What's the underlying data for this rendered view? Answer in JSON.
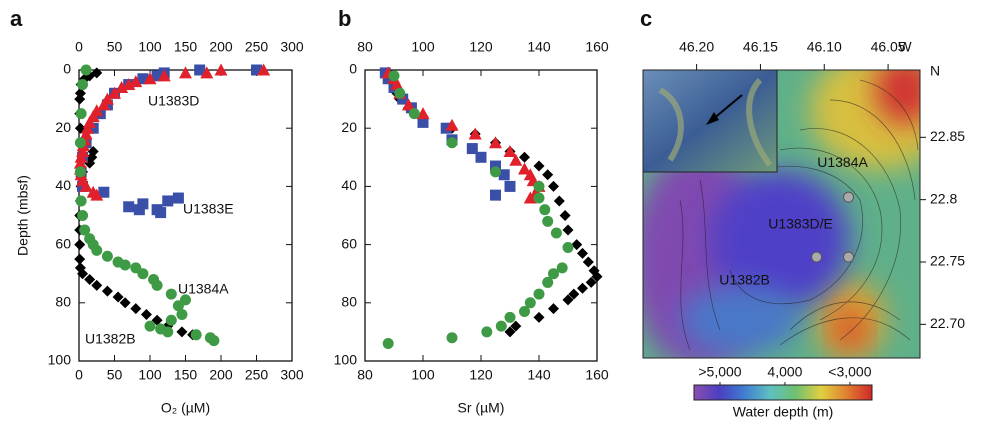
{
  "chart_data": [
    {
      "type": "scatter",
      "panel_label": "a",
      "xlabel": "O₂ (µM)",
      "ylabel": "Depth (mbsf)",
      "xlim": [
        0,
        300
      ],
      "xticks": [
        0,
        50,
        100,
        150,
        200,
        250,
        300
      ],
      "ylim": [
        0,
        100
      ],
      "yticks": [
        0,
        20,
        40,
        60,
        80,
        100
      ],
      "y_inverted": true,
      "series": [
        {
          "name": "U1382B",
          "color": "#000000",
          "marker": "diamond",
          "x": [
            25,
            15,
            8,
            3,
            2,
            1,
            1,
            2,
            3,
            20,
            18,
            15,
            5,
            3,
            2,
            1,
            1,
            1,
            1,
            2,
            5,
            15,
            25,
            40,
            55,
            65,
            80,
            95,
            110,
            125,
            145,
            160
          ],
          "values": [
            1,
            2,
            3,
            5,
            8,
            10,
            15,
            20,
            25,
            28,
            30,
            32,
            35,
            40,
            45,
            50,
            55,
            60,
            65,
            68,
            70,
            72,
            74,
            76,
            78,
            80,
            82,
            84,
            86,
            88,
            90,
            91
          ]
        },
        {
          "name": "U1383E",
          "color": "#3a4fa8",
          "marker": "square",
          "x": [
            250,
            170,
            120,
            110,
            90,
            70,
            50,
            40,
            30,
            20,
            10,
            5,
            3,
            5,
            35,
            140,
            125,
            90,
            70,
            85,
            110,
            115
          ],
          "values": [
            0,
            0,
            1,
            2,
            3,
            5,
            8,
            12,
            15,
            20,
            25,
            30,
            35,
            40,
            42,
            44,
            45,
            46,
            47,
            48,
            48,
            49
          ]
        },
        {
          "name": "U1383D",
          "color": "#e0202a",
          "marker": "triangle",
          "x": [
            260,
            200,
            180,
            150,
            120,
            100,
            80,
            70,
            60,
            50,
            40,
            35,
            25,
            20,
            15,
            12,
            10,
            8,
            6,
            5,
            3,
            2,
            2,
            3,
            5,
            10,
            20,
            25
          ],
          "values": [
            0,
            0,
            1,
            1,
            2,
            3,
            4,
            5,
            6,
            8,
            10,
            12,
            14,
            16,
            18,
            20,
            22,
            24,
            26,
            28,
            30,
            32,
            34,
            36,
            38,
            40,
            42,
            43
          ]
        },
        {
          "name": "U1384A",
          "color": "#3f9a46",
          "marker": "circle",
          "x": [
            10,
            5,
            3,
            2,
            2,
            3,
            5,
            8,
            15,
            20,
            25,
            40,
            55,
            65,
            80,
            90,
            105,
            110,
            130,
            150,
            140,
            145,
            130,
            100,
            115,
            125,
            165,
            185,
            190
          ],
          "values": [
            0,
            5,
            15,
            25,
            35,
            45,
            50,
            55,
            58,
            60,
            62,
            64,
            66,
            67,
            68,
            70,
            72,
            74,
            77,
            79,
            81,
            84,
            86,
            88,
            89,
            90,
            91,
            92,
            93
          ]
        }
      ]
    },
    {
      "type": "scatter",
      "panel_label": "b",
      "xlabel": "Sr (µM)",
      "xlim": [
        80,
        160
      ],
      "xticks": [
        80,
        100,
        120,
        140,
        160
      ],
      "ylim": [
        0,
        100
      ],
      "yticks": [
        0,
        20,
        40,
        60,
        80,
        100
      ],
      "y_inverted": true,
      "series": [
        {
          "color": "#000000",
          "marker": "diamond",
          "x": [
            88,
            89,
            90,
            91,
            92,
            95,
            100,
            110,
            118,
            125,
            130,
            135,
            140,
            143,
            145,
            147,
            149,
            150,
            153,
            155,
            157,
            159,
            160,
            158,
            155,
            152,
            150,
            145,
            140,
            132,
            130
          ],
          "values": [
            1,
            3,
            5,
            8,
            10,
            13,
            16,
            20,
            22,
            25,
            28,
            30,
            33,
            36,
            40,
            45,
            50,
            55,
            60,
            63,
            66,
            69,
            71,
            73,
            75,
            77,
            79,
            82,
            85,
            88,
            90
          ]
        },
        {
          "color": "#3a4fa8",
          "marker": "square",
          "x": [
            87,
            88,
            90,
            93,
            96,
            100,
            108,
            110,
            117,
            120,
            125,
            128,
            130,
            125
          ],
          "values": [
            1,
            3,
            6,
            10,
            13,
            18,
            20,
            24,
            27,
            30,
            33,
            36,
            40,
            43
          ]
        },
        {
          "color": "#e0202a",
          "marker": "triangle",
          "x": [
            88,
            90,
            91,
            92,
            95,
            100,
            110,
            118,
            125,
            130,
            132,
            135,
            137,
            138,
            140,
            139,
            137
          ],
          "values": [
            1,
            3,
            5,
            8,
            12,
            15,
            19,
            22,
            25,
            28,
            31,
            34,
            36,
            38,
            40,
            42,
            44
          ]
        },
        {
          "color": "#3f9a46",
          "marker": "circle",
          "x": [
            90,
            92,
            97,
            110,
            125,
            140,
            140,
            142,
            143,
            146,
            150,
            148,
            145,
            143,
            140,
            137,
            135,
            130,
            127,
            122,
            110,
            88
          ],
          "values": [
            2,
            8,
            15,
            25,
            35,
            40,
            44,
            48,
            52,
            56,
            61,
            68,
            70,
            73,
            77,
            80,
            83,
            85,
            88,
            90,
            92,
            94
          ]
        }
      ]
    },
    {
      "type": "map",
      "panel_label": "c",
      "x_unit": "W",
      "y_unit": "N",
      "xlim": [
        46.242,
        46.025
      ],
      "xticks": [
        {
          "value": 46.2,
          "label": "46.20"
        },
        46.15,
        {
          "value": 46.1,
          "label": "46.10"
        },
        46.05
      ],
      "ylim": [
        22.673,
        22.904
      ],
      "yticks": [
        22.85,
        22.8,
        22.75,
        {
          "value": 22.7,
          "label": "22.70"
        }
      ],
      "sites": [
        {
          "name": "U1384A",
          "lon": 46.081,
          "lat": 22.802
        },
        {
          "name": "U1383D/E",
          "lon": 46.081,
          "lat": 22.754
        },
        {
          "name": "U1382B",
          "lon": 46.106,
          "lat": 22.754
        }
      ],
      "colorbar": {
        "label": "Water depth (m)",
        "clim": [
          5400,
          2660
        ],
        "ticks": [
          {
            "value": 5000,
            "label": ">5,000"
          },
          {
            "value": 4000,
            "label": "4,000"
          },
          {
            "value": 3000,
            "label": "<3,000"
          }
        ],
        "colors": [
          "#8a4fb0",
          "#4a3fc0",
          "#3f7fd0",
          "#5fc0c0",
          "#6fc070",
          "#e0d040",
          "#e08030",
          "#d02828"
        ]
      }
    }
  ]
}
